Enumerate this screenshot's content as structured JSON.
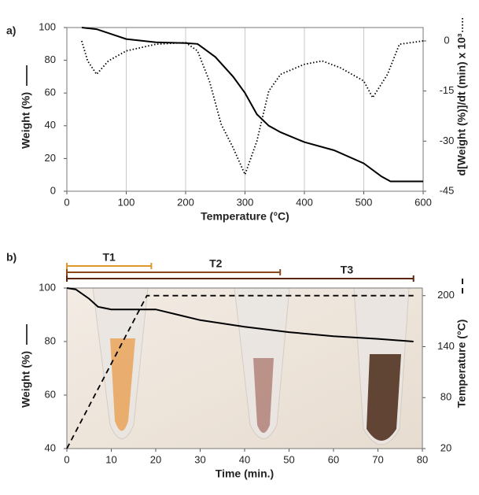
{
  "chart_data": [
    {
      "type": "line",
      "panel_label": "a)",
      "xlabel": "Temperature (°C)",
      "ylabel": "Weight (%)",
      "y2label": "d[Weight (%)]/dt (min) x 10³",
      "xlim": [
        0,
        600
      ],
      "xticks": [
        0,
        100,
        200,
        300,
        400,
        500,
        600
      ],
      "ylim": [
        0,
        100
      ],
      "yticks": [
        0,
        20,
        40,
        60,
        80,
        100
      ],
      "y2lim": [
        -45,
        4
      ],
      "y2ticks": [
        0,
        -15,
        -30,
        -45
      ],
      "grid": true,
      "series": [
        {
          "color": "#000000",
          "linestyle": "solid",
          "x": [
            25,
            50,
            75,
            100,
            150,
            200,
            220,
            250,
            280,
            300,
            320,
            340,
            360,
            400,
            450,
            500,
            530,
            545,
            600
          ],
          "values": [
            100,
            99,
            96,
            93,
            91,
            90.5,
            90,
            82,
            70,
            60,
            47,
            40,
            36,
            30,
            25,
            17,
            9,
            6,
            6
          ]
        },
        {
          "color": "#000000",
          "linestyle": "dotted",
          "axis": "y2",
          "x": [
            25,
            35,
            50,
            70,
            100,
            150,
            200,
            220,
            240,
            260,
            280,
            300,
            320,
            340,
            360,
            400,
            430,
            460,
            500,
            515,
            540,
            560,
            600
          ],
          "values": [
            0,
            -6,
            -10,
            -6,
            -3,
            -1,
            -0.5,
            -3,
            -12,
            -25,
            -32,
            -40,
            -30,
            -15,
            -10,
            -7,
            -6,
            -8,
            -12,
            -17,
            -10,
            -1,
            0
          ]
        }
      ]
    },
    {
      "type": "line",
      "panel_label": "b)",
      "xlabel": "Time (min.)",
      "ylabel": "Weight (%)",
      "y2label": "Temperature (°C)",
      "xlim": [
        0,
        80
      ],
      "xticks": [
        0,
        10,
        20,
        30,
        40,
        50,
        60,
        70,
        80
      ],
      "ylim": [
        40,
        100
      ],
      "yticks": [
        40,
        60,
        80,
        100
      ],
      "y2lim": [
        20,
        209
      ],
      "y2ticks": [
        20,
        80,
        140,
        200
      ],
      "grid": false,
      "brackets": [
        {
          "label": "T1",
          "x": [
            0,
            19
          ],
          "color": "#e0962e"
        },
        {
          "label": "T2",
          "x": [
            0,
            48
          ],
          "color": "#8b4a1c"
        },
        {
          "label": "T3",
          "x": [
            0,
            78
          ],
          "color": "#5a2410"
        }
      ],
      "series": [
        {
          "color": "#000000",
          "linestyle": "solid",
          "x": [
            0,
            2,
            5,
            7,
            10,
            15,
            20,
            25,
            30,
            40,
            50,
            60,
            70,
            78
          ],
          "values": [
            100,
            99.5,
            96,
            93,
            92,
            92,
            92,
            90,
            88,
            85.5,
            83.5,
            82,
            81,
            80
          ]
        },
        {
          "color": "#000000",
          "linestyle": "dashed",
          "axis": "y2",
          "x": [
            0,
            18,
            78
          ],
          "values": [
            20,
            200,
            200
          ]
        }
      ]
    }
  ]
}
